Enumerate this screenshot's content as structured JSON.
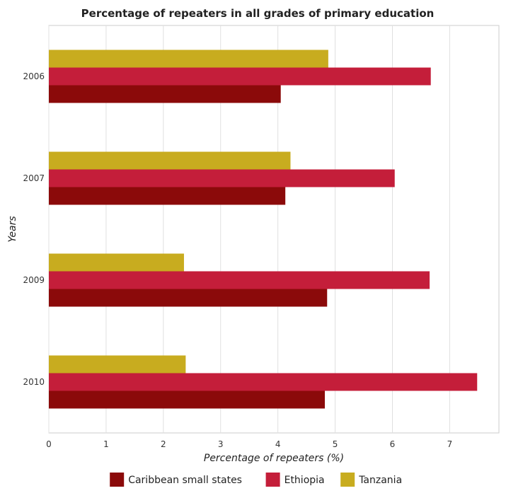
{
  "chart_data": {
    "type": "bar",
    "orientation": "horizontal",
    "title": "Percentage of repeaters in all grades of primary education",
    "xlabel": "Percentage of repeaters (%)",
    "ylabel": "Years",
    "categories": [
      "2006",
      "2007",
      "2009",
      "2010"
    ],
    "series": [
      {
        "name": "Caribbean small states",
        "color": "#8b0a0a",
        "values": [
          4.05,
          4.13,
          4.86,
          4.82
        ]
      },
      {
        "name": "Ethiopia",
        "color": "#c41e3a",
        "values": [
          6.67,
          6.04,
          6.65,
          7.48
        ]
      },
      {
        "name": "Tanzania",
        "color": "#c8ac1f",
        "values": [
          4.88,
          4.22,
          2.36,
          2.39
        ]
      }
    ],
    "xticks": [
      "0",
      "1",
      "2",
      "3",
      "4",
      "5",
      "6",
      "7"
    ],
    "xlim": [
      0,
      7.86
    ],
    "grid": true,
    "legend": "bottom"
  }
}
